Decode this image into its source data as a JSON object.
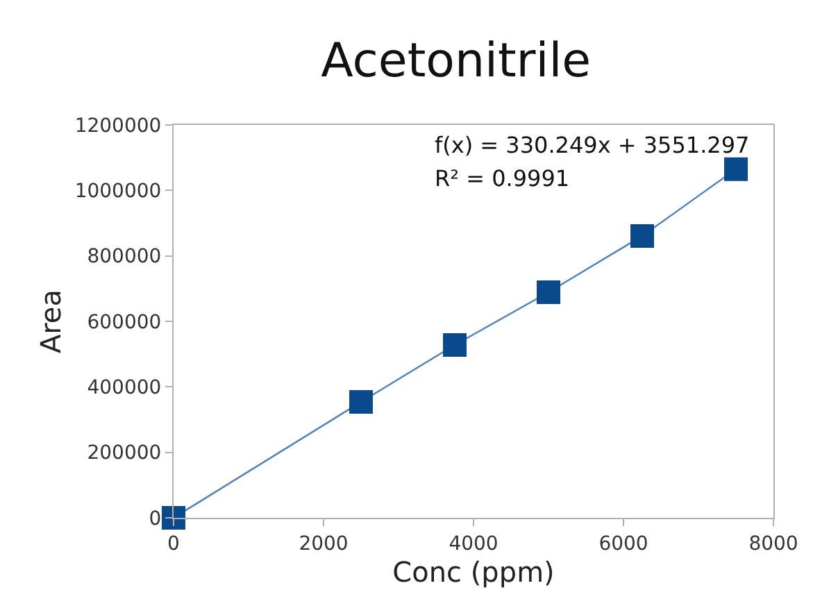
{
  "chart_data": {
    "type": "line",
    "title": "Acetonitrile",
    "xlabel": "Conc (ppm)",
    "ylabel": "Area",
    "x": [
      0,
      2500,
      3750,
      5000,
      6250,
      7500
    ],
    "series": [
      {
        "color": "#0a4a8c",
        "values": [
          0,
          354000,
          528000,
          689000,
          861000,
          1065000
        ]
      }
    ],
    "xlim": [
      0,
      8000
    ],
    "xticks": [
      0,
      2000,
      4000,
      6000,
      8000
    ],
    "ylim": [
      0,
      1200000
    ],
    "yticks": [
      0,
      200000,
      400000,
      600000,
      800000,
      1000000,
      1200000
    ],
    "marker": "square",
    "line_style": "solid",
    "legend": false,
    "annotations": [
      "f(x) = 330.249x + 3551.297",
      "R² = 0.9991"
    ]
  }
}
